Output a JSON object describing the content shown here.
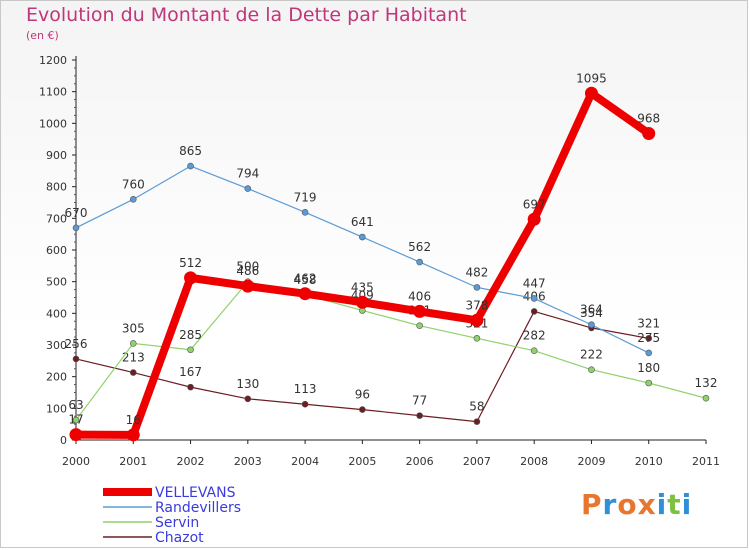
{
  "chart_data": {
    "type": "line",
    "title": "Evolution du Montant de la Dette par Habitant",
    "unit_label": "(en €)",
    "x": [
      2000,
      2001,
      2002,
      2003,
      2004,
      2005,
      2006,
      2007,
      2008,
      2009,
      2010,
      2011
    ],
    "x_tick_labels": [
      "2000",
      "2001",
      "2002",
      "2003",
      "2004",
      "2005",
      "2006",
      "2007",
      "2008",
      "2009",
      "2010",
      "2011"
    ],
    "ylim": [
      0,
      1200
    ],
    "y_ticks": [
      0,
      100,
      200,
      300,
      400,
      500,
      600,
      700,
      800,
      900,
      1000,
      1100,
      1200
    ],
    "grid": false,
    "legend_position": "bottom-left",
    "series": [
      {
        "name": "Chazot",
        "color": "#6b1e24",
        "values": [
          256,
          213,
          167,
          130,
          113,
          96,
          77,
          58,
          406,
          354,
          321,
          null
        ],
        "labels": [
          "256",
          "213",
          "167",
          "130",
          "113",
          "96",
          "77",
          "58",
          "406",
          "354",
          "321",
          ""
        ]
      },
      {
        "name": "Servin",
        "color": "#8fd16a",
        "values": [
          63,
          305,
          285,
          500,
          458,
          409,
          361,
          321,
          282,
          222,
          180,
          132
        ],
        "labels": [
          "63",
          "305",
          "285",
          "500",
          "458",
          "409",
          "361",
          "321",
          "282",
          "222",
          "180",
          "132"
        ]
      },
      {
        "name": "Randevillers",
        "color": "#5b9bd5",
        "values": [
          670,
          760,
          865,
          794,
          719,
          641,
          562,
          482,
          447,
          364,
          275,
          null
        ],
        "labels": [
          "670",
          "760",
          "865",
          "794",
          "719",
          "641",
          "562",
          "482",
          "447",
          "364",
          "275",
          ""
        ]
      },
      {
        "name": "VELLEVANS",
        "color": "#ee0000",
        "values": [
          17,
          16,
          512,
          486,
          462,
          435,
          406,
          378,
          697,
          1095,
          968,
          null
        ],
        "labels": [
          "17",
          "16",
          "512",
          "486",
          "462",
          "435",
          "406",
          "378",
          "697",
          "1095",
          "968",
          ""
        ]
      }
    ]
  },
  "legend": [
    {
      "name": "VELLEVANS",
      "color": "#ee0000",
      "text_color": "#3b3bdd"
    },
    {
      "name": "Randevillers",
      "color": "#5b9bd5",
      "text_color": "#3b3bdd"
    },
    {
      "name": "Servin",
      "color": "#8fd16a",
      "text_color": "#3b3bdd"
    },
    {
      "name": "Chazot",
      "color": "#6b1e24",
      "text_color": "#3b3bdd"
    }
  ],
  "logo": {
    "text": "Proxiti",
    "colors": [
      "#e8772e",
      "#2f8fd8",
      "#e8772e",
      "#e8772e",
      "#2f8fd8",
      "#7cc242",
      "#2f8fd8"
    ]
  }
}
